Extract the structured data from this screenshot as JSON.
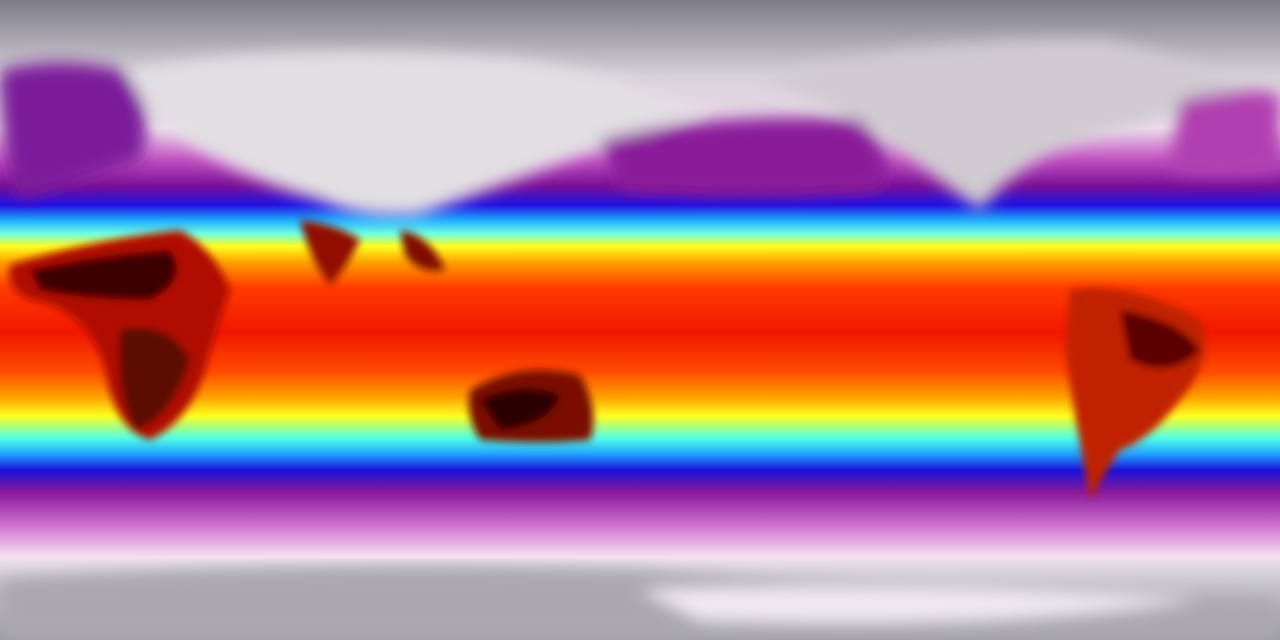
{
  "map": {
    "projection": "equirectangular",
    "variable": "temperature",
    "colormap": [
      "#8a8894",
      "#d8d4da",
      "#f4e6f2",
      "#d070d0",
      "#8a1a9a",
      "#1a10e0",
      "#20c8ff",
      "#60fff0",
      "#ffff20",
      "#ff9a00",
      "#ff3000",
      "#e01000",
      "#5a0000",
      "#1a0000"
    ],
    "land_hot_color": "#3a0000",
    "polar_color": "#9a98a2"
  }
}
